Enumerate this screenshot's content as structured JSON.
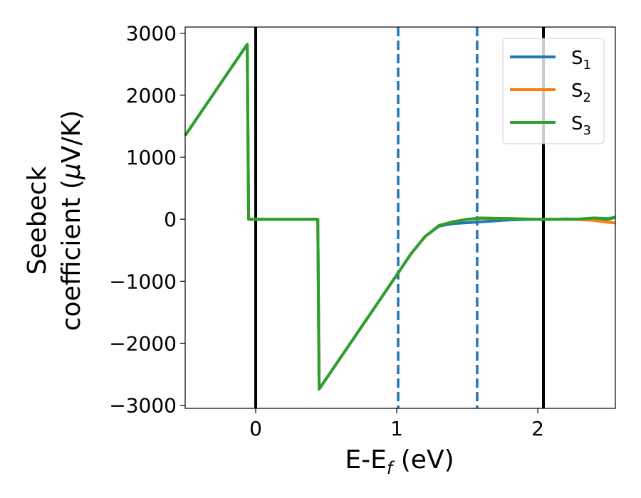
{
  "chart_data": {
    "type": "line",
    "xlabel": "E-E_f (eV)",
    "xlabel_parts": {
      "main": "E-E",
      "sub": "f",
      "rest": " (eV)"
    },
    "ylabel_line1": "Seebeck",
    "ylabel_line2_pre": "coefficient  (",
    "ylabel_mu": "μ",
    "ylabel_line2_post": "V/K)",
    "xlim": [
      -0.5,
      2.55
    ],
    "ylim": [
      -3050,
      3100
    ],
    "x_ticks": [
      0,
      1,
      2
    ],
    "x_tick_labels": [
      "0",
      "1",
      "2"
    ],
    "y_ticks": [
      3000,
      2000,
      1000,
      0,
      -1000,
      -2000,
      -3000
    ],
    "y_tick_labels": [
      "3000",
      "2000",
      "1000",
      "0",
      "−1000",
      "−2000",
      "−3000"
    ],
    "vlines": [
      {
        "x": 0.0,
        "style": "solid",
        "color": "#000000"
      },
      {
        "x": 2.04,
        "style": "solid",
        "color": "#000000"
      },
      {
        "x": 1.01,
        "style": "dashed",
        "color": "#1f77b4"
      },
      {
        "x": 1.57,
        "style": "dashed",
        "color": "#1f77b4"
      }
    ],
    "legend_position": "top-right",
    "series": [
      {
        "name": "S_1",
        "label_main": "S",
        "label_sub": "1",
        "color": "#1f77b4",
        "x": [
          -0.5,
          -0.06,
          -0.05,
          0.44,
          0.45,
          1.0,
          1.1,
          1.2,
          1.3,
          1.4,
          1.5,
          1.6,
          1.7,
          1.8,
          1.9,
          2.0,
          2.1,
          2.2,
          2.3,
          2.4,
          2.5,
          2.55
        ],
        "y": [
          1350,
          2820,
          0,
          0,
          -2740,
          -900,
          -560,
          -280,
          -110,
          -70,
          -55,
          -40,
          -25,
          -10,
          -5,
          0,
          0,
          5,
          0,
          5,
          0,
          30
        ]
      },
      {
        "name": "S_2",
        "label_main": "S",
        "label_sub": "2",
        "color": "#ff7f0e",
        "x": [
          -0.5,
          -0.06,
          -0.05,
          0.44,
          0.45,
          1.0,
          1.1,
          1.2,
          1.3,
          1.4,
          1.5,
          1.6,
          1.7,
          1.8,
          1.9,
          2.0,
          2.1,
          2.2,
          2.3,
          2.4,
          2.5,
          2.55
        ],
        "y": [
          1350,
          2820,
          0,
          0,
          -2740,
          -900,
          -560,
          -280,
          -100,
          -40,
          0,
          15,
          10,
          10,
          5,
          0,
          0,
          0,
          -5,
          -20,
          -50,
          -60
        ]
      },
      {
        "name": "S_3",
        "label_main": "S",
        "label_sub": "3",
        "color": "#2ca02c",
        "x": [
          -0.5,
          -0.06,
          -0.05,
          0.44,
          0.45,
          1.0,
          1.1,
          1.2,
          1.3,
          1.4,
          1.5,
          1.6,
          1.7,
          1.8,
          1.9,
          2.0,
          2.1,
          2.2,
          2.3,
          2.4,
          2.5,
          2.55
        ],
        "y": [
          1350,
          2820,
          0,
          0,
          -2740,
          -900,
          -560,
          -280,
          -100,
          -40,
          0,
          20,
          15,
          10,
          5,
          0,
          0,
          0,
          5,
          20,
          10,
          35
        ]
      }
    ]
  }
}
